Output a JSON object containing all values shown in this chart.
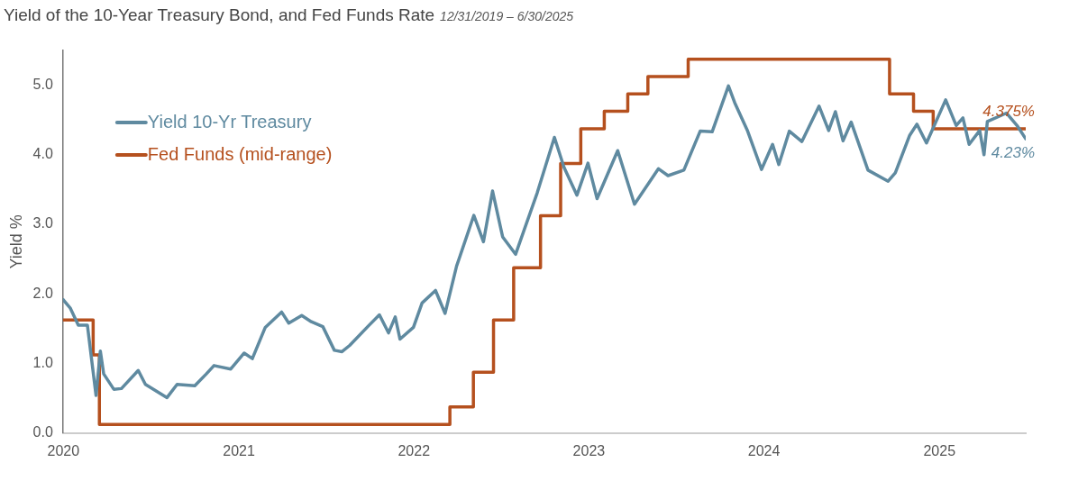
{
  "chart_data": {
    "type": "line",
    "title": "Yield of the 10-Year Treasury Bond, and Fed Funds Rate",
    "subtitle": "12/31/2019 – 6/30/2025",
    "ylabel": "Yield %",
    "xlim": [
      "2019-12-31",
      "2025-06-30"
    ],
    "xticks": [
      {
        "value": "2020-01-01",
        "label": "2020"
      },
      {
        "value": "2021-01-01",
        "label": "2021"
      },
      {
        "value": "2022-01-01",
        "label": "2022"
      },
      {
        "value": "2023-01-01",
        "label": "2023"
      },
      {
        "value": "2024-01-01",
        "label": "2024"
      },
      {
        "value": "2025-01-01",
        "label": "2025"
      }
    ],
    "ylim": [
      0,
      5.5
    ],
    "yticks": [
      {
        "value": 0,
        "label": "0.0"
      },
      {
        "value": 1,
        "label": "1.0"
      },
      {
        "value": 2,
        "label": "2.0"
      },
      {
        "value": 3,
        "label": "3.0"
      },
      {
        "value": 4,
        "label": "4.0"
      },
      {
        "value": 5,
        "label": "5.0"
      }
    ],
    "grid": false,
    "legend": "top left",
    "marker": "none",
    "line_style": "solid",
    "series": [
      {
        "name": "Yield 10-Yr Treasury",
        "type": "line",
        "color": "#5f8aa0",
        "x": [
          "2019-12-31",
          "2020-01-15",
          "2020-02-01",
          "2020-02-20",
          "2020-03-09",
          "2020-03-18",
          "2020-03-25",
          "2020-04-15",
          "2020-05-01",
          "2020-06-05",
          "2020-06-20",
          "2020-08-04",
          "2020-08-25",
          "2020-10-01",
          "2020-10-25",
          "2020-11-10",
          "2020-12-15",
          "2021-01-12",
          "2021-01-29",
          "2021-02-25",
          "2021-03-31",
          "2021-04-15",
          "2021-05-12",
          "2021-06-01",
          "2021-06-25",
          "2021-07-19",
          "2021-08-04",
          "2021-08-20",
          "2021-09-28",
          "2021-10-21",
          "2021-11-09",
          "2021-11-23",
          "2021-12-03",
          "2021-12-31",
          "2022-01-18",
          "2022-02-15",
          "2022-03-07",
          "2022-03-31",
          "2022-05-06",
          "2022-05-26",
          "2022-06-14",
          "2022-07-05",
          "2022-08-01",
          "2022-09-15",
          "2022-10-21",
          "2022-11-10",
          "2022-12-07",
          "2022-12-30",
          "2023-01-18",
          "2023-03-02",
          "2023-04-06",
          "2023-05-26",
          "2023-06-15",
          "2023-07-18",
          "2023-08-21",
          "2023-09-15",
          "2023-10-19",
          "2023-11-01",
          "2023-11-28",
          "2023-12-27",
          "2024-01-19",
          "2024-02-01",
          "2024-02-23",
          "2024-03-20",
          "2024-04-25",
          "2024-05-15",
          "2024-05-29",
          "2024-06-14",
          "2024-07-01",
          "2024-08-05",
          "2024-09-16",
          "2024-10-01",
          "2024-10-31",
          "2024-11-15",
          "2024-12-05",
          "2025-01-14",
          "2025-02-05",
          "2025-02-19",
          "2025-03-04",
          "2025-03-26",
          "2025-04-04",
          "2025-04-11",
          "2025-05-21",
          "2025-06-13",
          "2025-06-30"
        ],
        "values": [
          1.92,
          1.8,
          1.55,
          1.55,
          0.54,
          1.18,
          0.85,
          0.63,
          0.64,
          0.9,
          0.7,
          0.51,
          0.7,
          0.68,
          0.85,
          0.97,
          0.92,
          1.15,
          1.07,
          1.52,
          1.74,
          1.58,
          1.69,
          1.6,
          1.53,
          1.19,
          1.17,
          1.26,
          1.54,
          1.7,
          1.44,
          1.67,
          1.35,
          1.52,
          1.87,
          2.05,
          1.72,
          2.4,
          3.13,
          2.75,
          3.48,
          2.82,
          2.57,
          3.45,
          4.25,
          3.82,
          3.42,
          3.88,
          3.37,
          4.06,
          3.29,
          3.8,
          3.7,
          3.78,
          4.34,
          4.33,
          4.99,
          4.75,
          4.34,
          3.79,
          4.15,
          3.86,
          4.34,
          4.19,
          4.7,
          4.35,
          4.62,
          4.2,
          4.47,
          3.78,
          3.62,
          3.74,
          4.28,
          4.44,
          4.17,
          4.79,
          4.42,
          4.53,
          4.15,
          4.35,
          4,
          4.48,
          4.6,
          4.41,
          4.23
        ]
      },
      {
        "name": "Fed Funds (mid-range)",
        "type": "step",
        "color": "#b5501e",
        "x": [
          "2019-12-31",
          "2020-03-03",
          "2020-03-16",
          "2022-03-17",
          "2022-05-05",
          "2022-06-16",
          "2022-07-28",
          "2022-09-22",
          "2022-11-03",
          "2022-12-15",
          "2023-02-02",
          "2023-03-23",
          "2023-05-04",
          "2023-07-27",
          "2024-09-19",
          "2024-11-08",
          "2024-12-19",
          "2025-06-30"
        ],
        "values": [
          1.625,
          1.125,
          0.125,
          0.375,
          0.875,
          1.625,
          2.375,
          3.125,
          3.875,
          4.375,
          4.625,
          4.875,
          5.125,
          5.375,
          4.875,
          4.625,
          4.375,
          4.375
        ]
      }
    ],
    "annotations": [
      {
        "text": "4.375%",
        "x": "2025-06-30",
        "y": 4.375
      },
      {
        "text": "4.23%",
        "x": "2025-06-30",
        "y": 4.23
      }
    ]
  }
}
